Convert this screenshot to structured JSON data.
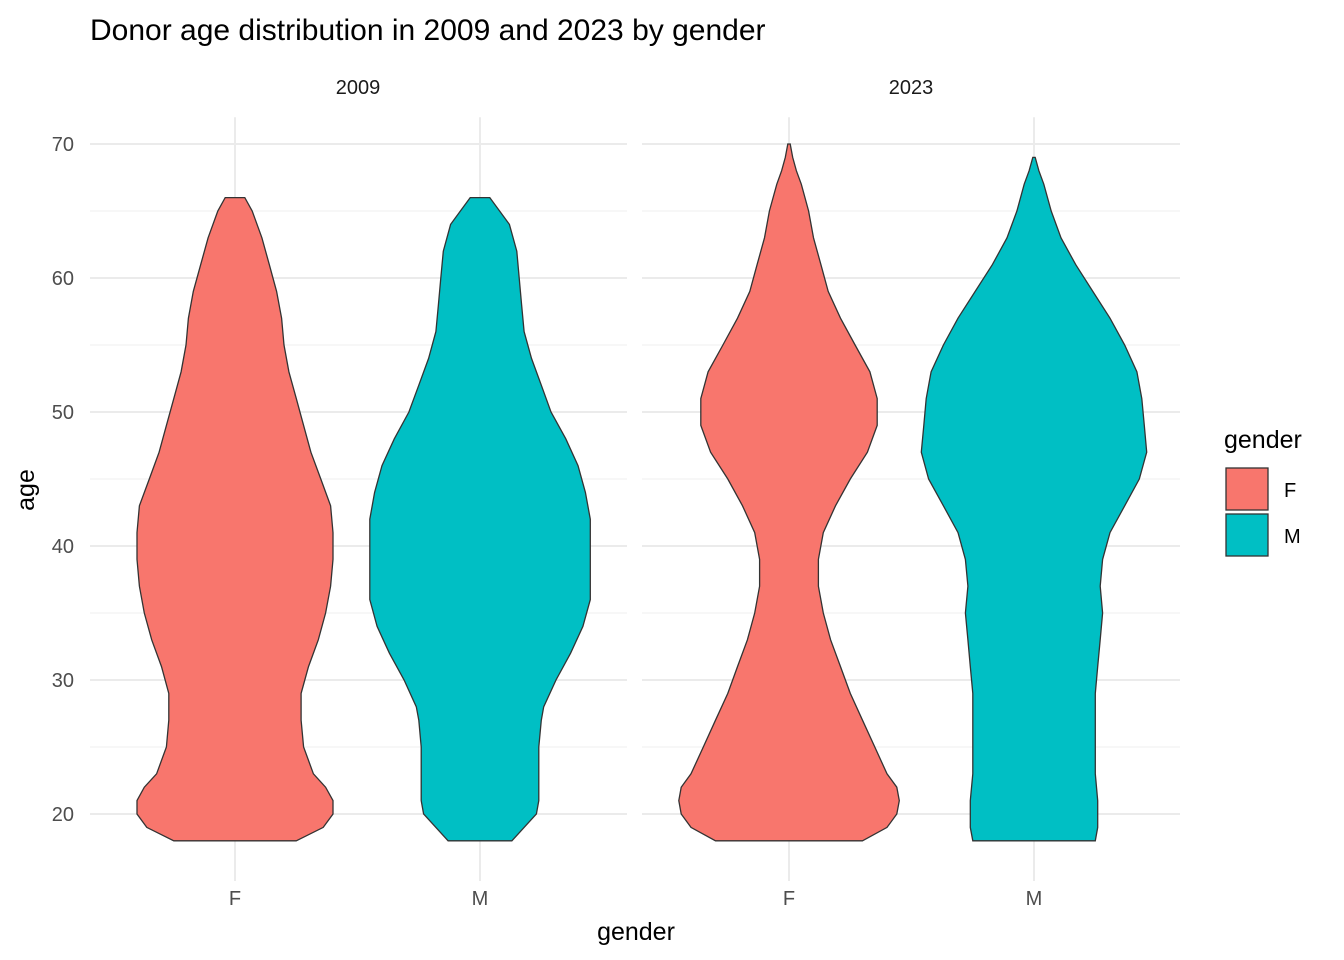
{
  "chart_data": {
    "type": "violin",
    "title": "Donor age distribution in 2009 and 2023 by gender",
    "xlabel": "gender",
    "ylabel": "age",
    "ylim": [
      15,
      72
    ],
    "y_ticks": [
      "20",
      "30",
      "40",
      "50",
      "60",
      "70"
    ],
    "grid": true,
    "legend": {
      "title": "gender",
      "placement": "right"
    },
    "categories": [
      "F",
      "M"
    ],
    "colors": {
      "F": "#F8766D",
      "M": "#00BFC4",
      "outline": "#333333"
    },
    "panels": [
      {
        "label": "2009",
        "series": [
          {
            "name": "F",
            "range": [
              18,
              66
            ],
            "halfwidth": [
              [
                18,
                0.25
              ],
              [
                19,
                0.36
              ],
              [
                20,
                0.4
              ],
              [
                21,
                0.4
              ],
              [
                22,
                0.37
              ],
              [
                23,
                0.32
              ],
              [
                25,
                0.28
              ],
              [
                27,
                0.27
              ],
              [
                29,
                0.27
              ],
              [
                31,
                0.3
              ],
              [
                33,
                0.34
              ],
              [
                35,
                0.37
              ],
              [
                37,
                0.39
              ],
              [
                39,
                0.4
              ],
              [
                41,
                0.4
              ],
              [
                43,
                0.39
              ],
              [
                45,
                0.35
              ],
              [
                47,
                0.31
              ],
              [
                49,
                0.28
              ],
              [
                51,
                0.25
              ],
              [
                53,
                0.22
              ],
              [
                55,
                0.2
              ],
              [
                57,
                0.19
              ],
              [
                59,
                0.17
              ],
              [
                61,
                0.14
              ],
              [
                63,
                0.11
              ],
              [
                65,
                0.07
              ],
              [
                66,
                0.04
              ]
            ]
          },
          {
            "name": "M",
            "range": [
              18,
              66
            ],
            "halfwidth": [
              [
                18,
                0.13
              ],
              [
                19,
                0.18
              ],
              [
                20,
                0.23
              ],
              [
                21,
                0.24
              ],
              [
                23,
                0.24
              ],
              [
                25,
                0.24
              ],
              [
                27,
                0.25
              ],
              [
                28,
                0.26
              ],
              [
                30,
                0.31
              ],
              [
                32,
                0.37
              ],
              [
                34,
                0.42
              ],
              [
                36,
                0.45
              ],
              [
                38,
                0.45
              ],
              [
                40,
                0.45
              ],
              [
                42,
                0.45
              ],
              [
                44,
                0.43
              ],
              [
                46,
                0.4
              ],
              [
                48,
                0.35
              ],
              [
                50,
                0.29
              ],
              [
                52,
                0.25
              ],
              [
                54,
                0.21
              ],
              [
                56,
                0.18
              ],
              [
                58,
                0.17
              ],
              [
                60,
                0.16
              ],
              [
                62,
                0.15
              ],
              [
                64,
                0.12
              ],
              [
                65,
                0.08
              ],
              [
                66,
                0.04
              ]
            ]
          }
        ]
      },
      {
        "label": "2023",
        "series": [
          {
            "name": "F",
            "range": [
              18,
              70
            ],
            "halfwidth": [
              [
                18,
                0.3
              ],
              [
                19,
                0.4
              ],
              [
                20,
                0.44
              ],
              [
                21,
                0.45
              ],
              [
                22,
                0.44
              ],
              [
                23,
                0.4
              ],
              [
                25,
                0.35
              ],
              [
                27,
                0.3
              ],
              [
                29,
                0.25
              ],
              [
                31,
                0.21
              ],
              [
                33,
                0.17
              ],
              [
                35,
                0.14
              ],
              [
                37,
                0.12
              ],
              [
                39,
                0.12
              ],
              [
                41,
                0.14
              ],
              [
                43,
                0.19
              ],
              [
                45,
                0.25
              ],
              [
                47,
                0.32
              ],
              [
                49,
                0.36
              ],
              [
                51,
                0.36
              ],
              [
                53,
                0.33
              ],
              [
                55,
                0.27
              ],
              [
                57,
                0.21
              ],
              [
                59,
                0.16
              ],
              [
                61,
                0.13
              ],
              [
                63,
                0.1
              ],
              [
                65,
                0.08
              ],
              [
                67,
                0.05
              ],
              [
                68,
                0.03
              ],
              [
                69,
                0.015
              ],
              [
                70,
                0.005
              ]
            ]
          },
          {
            "name": "M",
            "range": [
              18,
              69
            ],
            "halfwidth": [
              [
                18,
                0.25
              ],
              [
                19,
                0.26
              ],
              [
                20,
                0.26
              ],
              [
                21,
                0.26
              ],
              [
                23,
                0.25
              ],
              [
                25,
                0.25
              ],
              [
                27,
                0.25
              ],
              [
                29,
                0.25
              ],
              [
                31,
                0.26
              ],
              [
                33,
                0.27
              ],
              [
                35,
                0.28
              ],
              [
                37,
                0.27
              ],
              [
                39,
                0.28
              ],
              [
                41,
                0.31
              ],
              [
                43,
                0.37
              ],
              [
                45,
                0.43
              ],
              [
                47,
                0.46
              ],
              [
                49,
                0.45
              ],
              [
                51,
                0.44
              ],
              [
                53,
                0.42
              ],
              [
                55,
                0.37
              ],
              [
                57,
                0.31
              ],
              [
                59,
                0.24
              ],
              [
                61,
                0.17
              ],
              [
                63,
                0.11
              ],
              [
                65,
                0.07
              ],
              [
                67,
                0.04
              ],
              [
                68,
                0.02
              ],
              [
                69,
                0.005
              ]
            ]
          }
        ]
      }
    ]
  }
}
